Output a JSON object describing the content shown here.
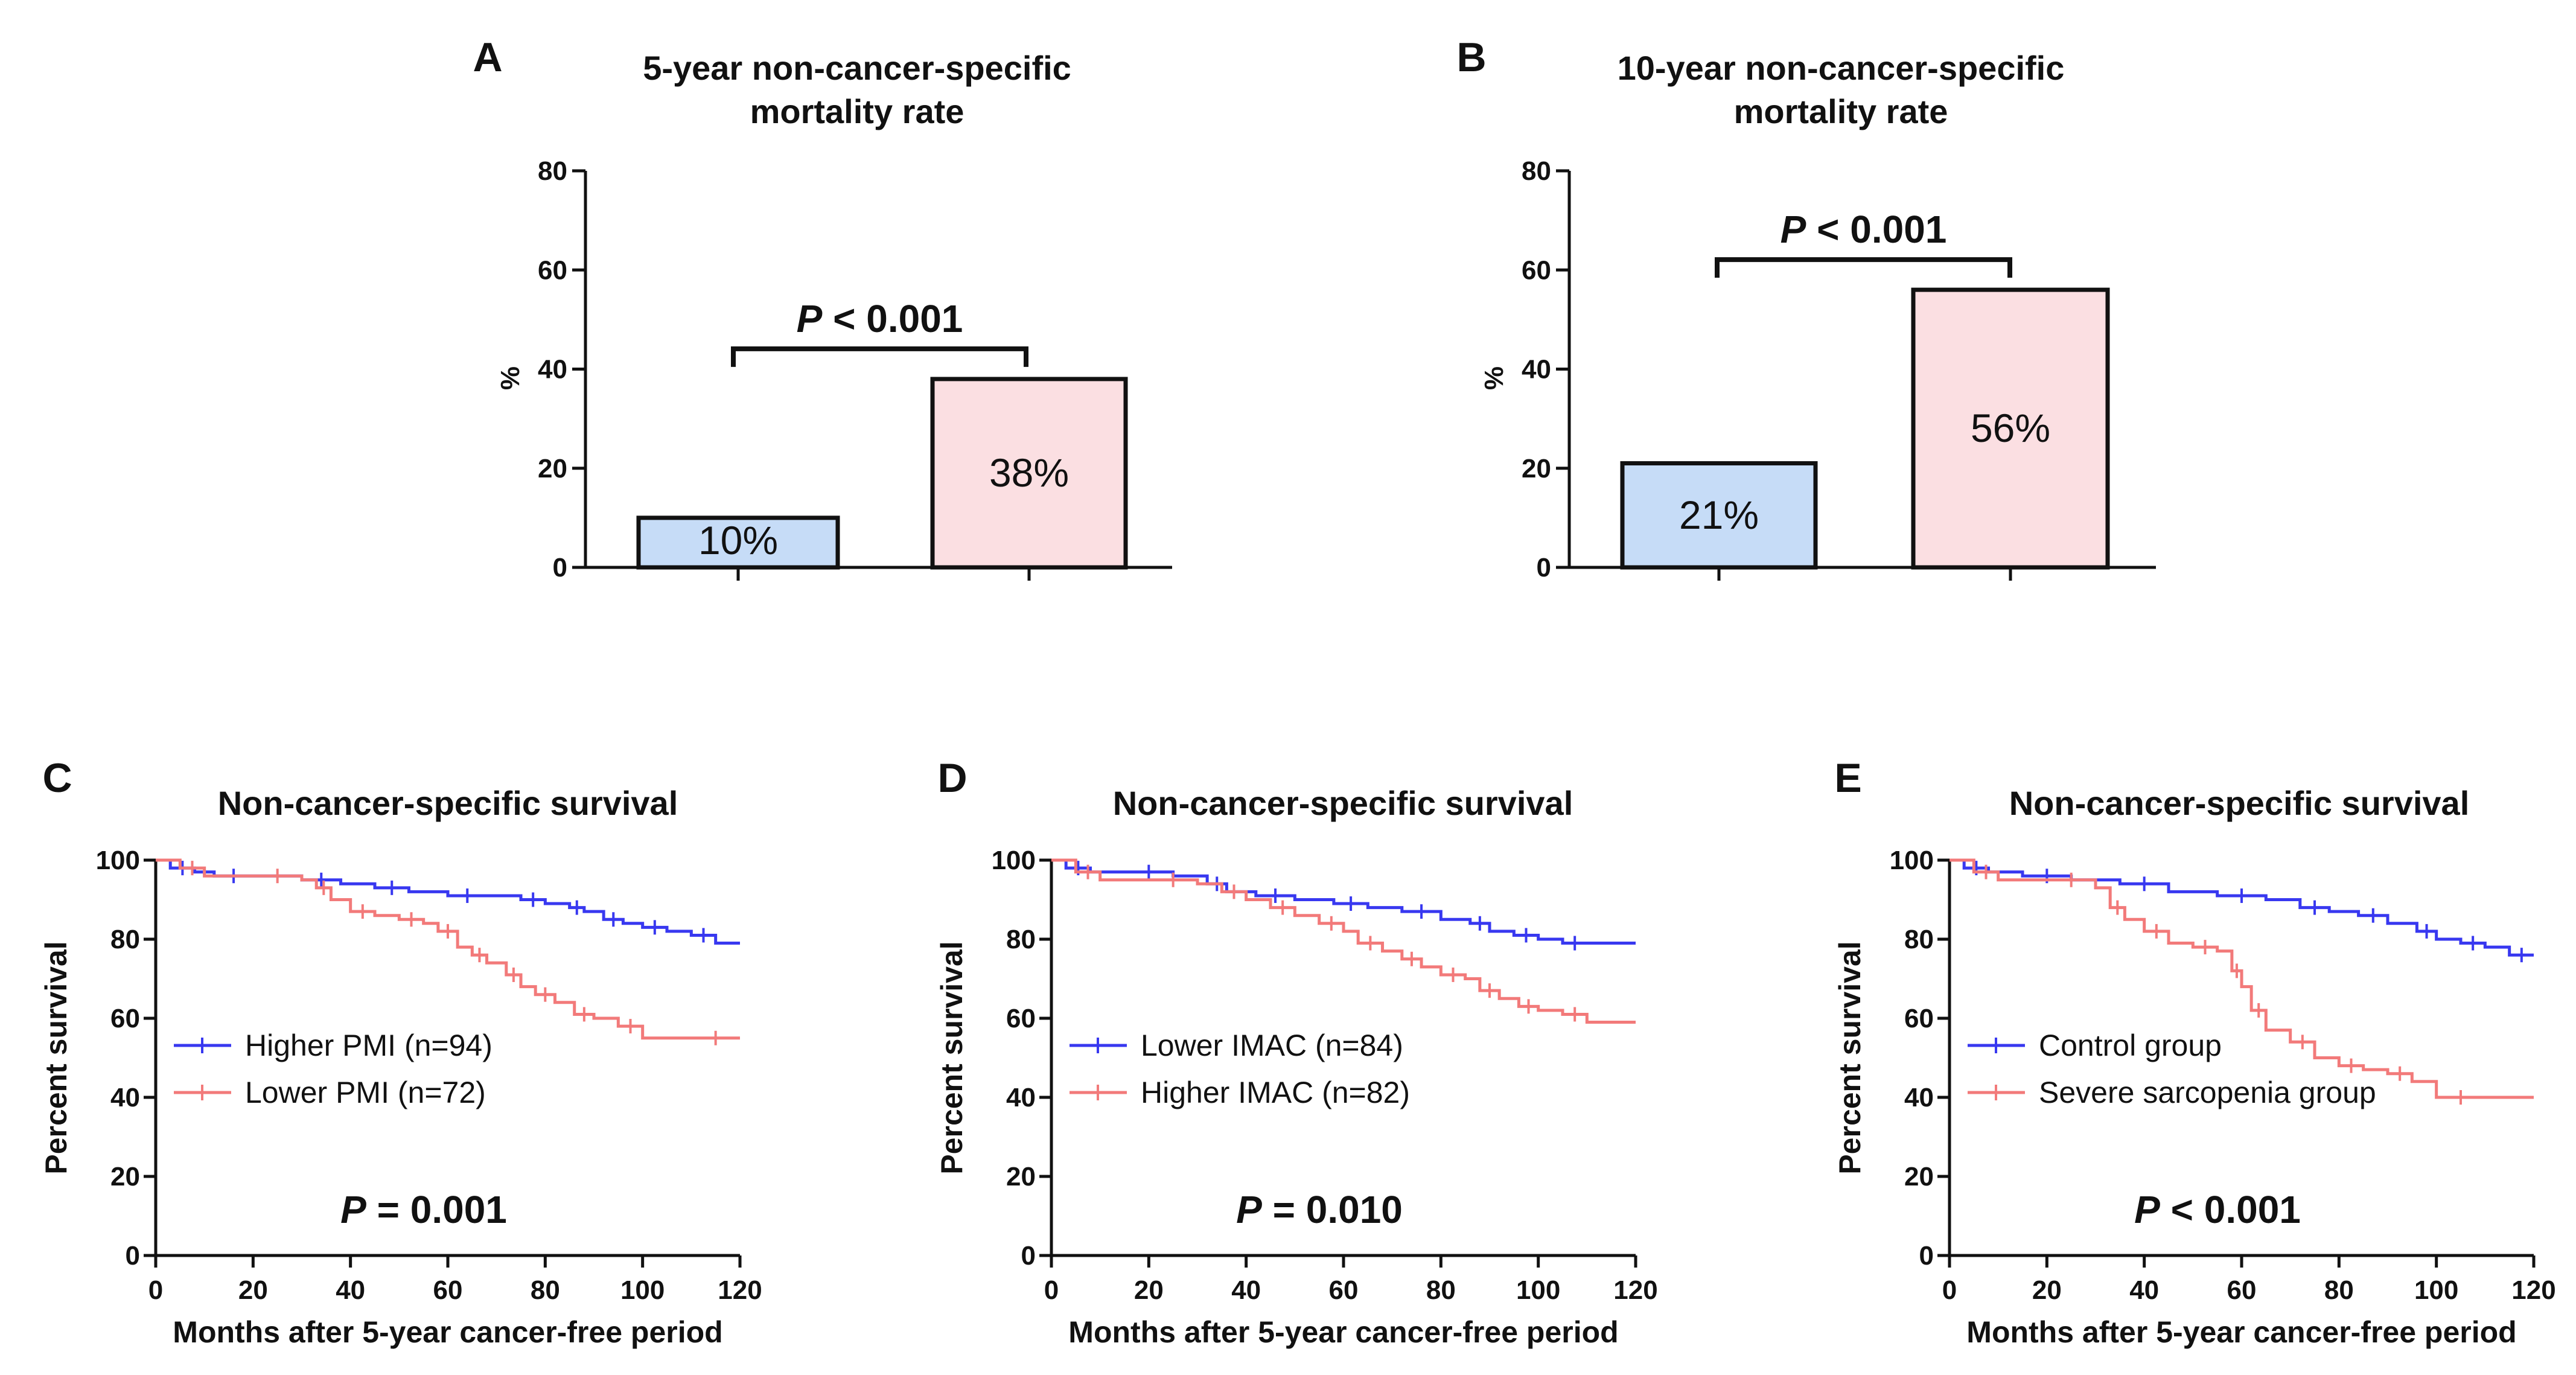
{
  "colors": {
    "blue_line": "#3838f0",
    "red_line": "#f27a7a",
    "blue_bar": "#c6dcf7",
    "red_bar": "#fbdfe2",
    "axis": "#111111"
  },
  "chart_data": [
    {
      "panel": "A",
      "type": "bar",
      "title_lines": [
        "5-year non-cancer-specific",
        "mortality rate"
      ],
      "ylabel": "%",
      "ylim": [
        0,
        80
      ],
      "yticks": [
        "0",
        "20",
        "40",
        "60",
        "80"
      ],
      "values": [
        10,
        38
      ],
      "value_labels": [
        "10%",
        "38%"
      ],
      "pvalue_prefix": "P",
      "pvalue_rest": " < 0.001",
      "xlabel": ""
    },
    {
      "panel": "B",
      "type": "bar",
      "title_lines": [
        "10-year non-cancer-specific",
        "mortality rate"
      ],
      "ylabel": "%",
      "ylim": [
        0,
        80
      ],
      "yticks": [
        "0",
        "20",
        "40",
        "60",
        "80"
      ],
      "values": [
        21,
        56
      ],
      "value_labels": [
        "21%",
        "56%"
      ],
      "pvalue_prefix": "P",
      "pvalue_rest": " < 0.001",
      "xlabel": ""
    },
    {
      "panel": "C",
      "type": "line",
      "title": "Non-cancer-specific survival",
      "xlabel": "Months after 5-year cancer-free period",
      "ylabel": "Percent survival",
      "xlim": [
        0,
        120
      ],
      "ylim": [
        0,
        100
      ],
      "xticks": [
        "0",
        "20",
        "40",
        "60",
        "80",
        "100",
        "120"
      ],
      "yticks": [
        "0",
        "20",
        "40",
        "60",
        "80",
        "100"
      ],
      "pvalue_prefix": "P",
      "pvalue_rest": " = 0.001",
      "series": [
        {
          "name": "Higher PMI (n=94)",
          "color": "#3838f0",
          "x": [
            0,
            3,
            8,
            12,
            20,
            30,
            38,
            45,
            52,
            60,
            68,
            75,
            80,
            85,
            88,
            92,
            96,
            100,
            105,
            110,
            115,
            120
          ],
          "y": [
            100,
            98,
            97,
            96,
            96,
            95,
            94,
            93,
            92,
            91,
            91,
            90,
            89,
            88,
            87,
            85,
            84,
            83,
            82,
            81,
            79,
            79
          ]
        },
        {
          "name": "Lower PMI (n=72)",
          "color": "#f27a7a",
          "x": [
            0,
            5,
            10,
            20,
            30,
            33,
            36,
            40,
            45,
            50,
            55,
            58,
            62,
            65,
            68,
            72,
            75,
            78,
            82,
            86,
            90,
            95,
            100,
            110,
            120
          ],
          "y": [
            100,
            98,
            96,
            96,
            95,
            93,
            90,
            87,
            86,
            85,
            84,
            82,
            78,
            76,
            74,
            71,
            68,
            66,
            64,
            61,
            60,
            58,
            55,
            55,
            55
          ]
        }
      ]
    },
    {
      "panel": "D",
      "type": "line",
      "title": "Non-cancer-specific survival",
      "xlabel": "Months after 5-year cancer-free period",
      "ylabel": "Percent survival",
      "xlim": [
        0,
        120
      ],
      "ylim": [
        0,
        100
      ],
      "xticks": [
        "0",
        "20",
        "40",
        "60",
        "80",
        "100",
        "120"
      ],
      "yticks": [
        "0",
        "20",
        "40",
        "60",
        "80",
        "100"
      ],
      "pvalue_prefix": "P",
      "pvalue_rest": " = 0.010",
      "series": [
        {
          "name": "Lower IMAC (n=84)",
          "color": "#3838f0",
          "x": [
            0,
            3,
            8,
            15,
            25,
            32,
            36,
            42,
            50,
            58,
            65,
            72,
            80,
            86,
            90,
            95,
            100,
            105,
            110,
            120
          ],
          "y": [
            100,
            98,
            97,
            97,
            96,
            94,
            92,
            91,
            90,
            89,
            88,
            87,
            85,
            84,
            82,
            81,
            80,
            79,
            79,
            79
          ]
        },
        {
          "name": "Higher IMAC (n=82)",
          "color": "#f27a7a",
          "x": [
            0,
            5,
            10,
            20,
            30,
            35,
            40,
            45,
            50,
            55,
            60,
            63,
            68,
            72,
            76,
            80,
            85,
            88,
            92,
            96,
            100,
            105,
            110,
            120
          ],
          "y": [
            100,
            97,
            95,
            95,
            94,
            92,
            90,
            88,
            86,
            84,
            82,
            79,
            77,
            75,
            73,
            71,
            70,
            67,
            65,
            63,
            62,
            61,
            59,
            59
          ]
        }
      ]
    },
    {
      "panel": "E",
      "type": "line",
      "title": "Non-cancer-specific survival",
      "xlabel": "Months after 5-year cancer-free period",
      "ylabel": "Percent survival",
      "xlim": [
        0,
        120
      ],
      "ylim": [
        0,
        100
      ],
      "xticks": [
        "0",
        "20",
        "40",
        "60",
        "80",
        "100",
        "120"
      ],
      "yticks": [
        "0",
        "20",
        "40",
        "60",
        "80",
        "100"
      ],
      "pvalue_prefix": "P",
      "pvalue_rest": " < 0.001",
      "series": [
        {
          "name": "Control group",
          "color": "#3838f0",
          "x": [
            0,
            3,
            8,
            15,
            25,
            35,
            45,
            55,
            65,
            72,
            78,
            84,
            90,
            96,
            100,
            105,
            110,
            115,
            120
          ],
          "y": [
            100,
            98,
            97,
            96,
            95,
            94,
            92,
            91,
            90,
            88,
            87,
            86,
            84,
            82,
            80,
            79,
            78,
            76,
            76
          ]
        },
        {
          "name": "Severe sarcopenia group",
          "color": "#f27a7a",
          "x": [
            0,
            5,
            10,
            20,
            30,
            33,
            36,
            40,
            45,
            50,
            55,
            58,
            60,
            62,
            65,
            70,
            75,
            80,
            85,
            90,
            95,
            100,
            110,
            120
          ],
          "y": [
            100,
            97,
            95,
            95,
            93,
            88,
            85,
            82,
            79,
            78,
            77,
            72,
            68,
            62,
            57,
            54,
            50,
            48,
            47,
            46,
            44,
            40,
            40,
            40
          ]
        }
      ]
    }
  ]
}
